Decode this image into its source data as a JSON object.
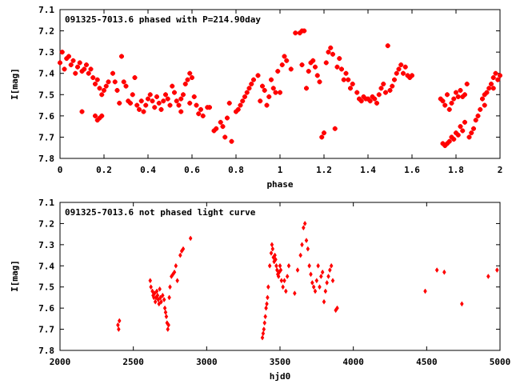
{
  "colors": {
    "points": "#ff0000",
    "axes": "#000000",
    "background": "#ffffff"
  },
  "chart_data": [
    {
      "type": "scatter",
      "title": "091325-7013.6 phased with P=214.90day",
      "xlabel": "phase",
      "ylabel": "I[mag]",
      "xlim": [
        0,
        2
      ],
      "ylim": [
        7.1,
        7.8
      ],
      "y_inverted": true,
      "grid": false,
      "xticks": [
        "0",
        "0.2",
        "0.4",
        "0.6",
        "0.8",
        "1",
        "1.2",
        "1.4",
        "1.6",
        "1.8",
        "2"
      ],
      "yticks": [
        "7.1",
        "7.2",
        "7.3",
        "7.4",
        "7.5",
        "7.6",
        "7.7",
        "7.8"
      ],
      "marker": "cross",
      "points": [
        [
          0.0,
          7.35
        ],
        [
          0.01,
          7.3
        ],
        [
          0.02,
          7.38
        ],
        [
          0.03,
          7.33
        ],
        [
          0.04,
          7.32
        ],
        [
          0.05,
          7.36
        ],
        [
          0.06,
          7.34
        ],
        [
          0.07,
          7.4
        ],
        [
          0.08,
          7.37
        ],
        [
          0.09,
          7.35
        ],
        [
          0.1,
          7.39
        ],
        [
          0.11,
          7.38
        ],
        [
          0.12,
          7.36
        ],
        [
          0.13,
          7.4
        ],
        [
          0.14,
          7.38
        ],
        [
          0.15,
          7.42
        ],
        [
          0.16,
          7.45
        ],
        [
          0.17,
          7.43
        ],
        [
          0.18,
          7.47
        ],
        [
          0.19,
          7.5
        ],
        [
          0.2,
          7.48
        ],
        [
          0.21,
          7.46
        ],
        [
          0.22,
          7.44
        ],
        [
          0.1,
          7.58
        ],
        [
          0.16,
          7.6
        ],
        [
          0.17,
          7.62
        ],
        [
          0.18,
          7.61
        ],
        [
          0.19,
          7.6
        ],
        [
          0.24,
          7.4
        ],
        [
          0.25,
          7.44
        ],
        [
          0.26,
          7.48
        ],
        [
          0.27,
          7.54
        ],
        [
          0.28,
          7.32
        ],
        [
          0.29,
          7.44
        ],
        [
          0.3,
          7.46
        ],
        [
          0.31,
          7.53
        ],
        [
          0.32,
          7.54
        ],
        [
          0.33,
          7.5
        ],
        [
          0.34,
          7.42
        ],
        [
          0.35,
          7.55
        ],
        [
          0.36,
          7.57
        ],
        [
          0.37,
          7.53
        ],
        [
          0.38,
          7.58
        ],
        [
          0.39,
          7.55
        ],
        [
          0.4,
          7.52
        ],
        [
          0.41,
          7.5
        ],
        [
          0.42,
          7.53
        ],
        [
          0.43,
          7.56
        ],
        [
          0.44,
          7.51
        ],
        [
          0.45,
          7.54
        ],
        [
          0.46,
          7.57
        ],
        [
          0.47,
          7.53
        ],
        [
          0.48,
          7.5
        ],
        [
          0.49,
          7.52
        ],
        [
          0.5,
          7.55
        ],
        [
          0.51,
          7.46
        ],
        [
          0.52,
          7.49
        ],
        [
          0.53,
          7.53
        ],
        [
          0.54,
          7.55
        ],
        [
          0.55,
          7.52
        ],
        [
          0.56,
          7.5
        ],
        [
          0.57,
          7.45
        ],
        [
          0.58,
          7.43
        ],
        [
          0.59,
          7.4
        ],
        [
          0.6,
          7.42
        ],
        [
          0.61,
          7.51
        ],
        [
          0.62,
          7.55
        ],
        [
          0.63,
          7.59
        ],
        [
          0.64,
          7.57
        ],
        [
          0.65,
          7.6
        ],
        [
          0.55,
          7.58
        ],
        [
          0.59,
          7.54
        ],
        [
          0.67,
          7.56
        ],
        [
          0.68,
          7.56
        ],
        [
          0.7,
          7.67
        ],
        [
          0.71,
          7.66
        ],
        [
          0.73,
          7.63
        ],
        [
          0.74,
          7.65
        ],
        [
          0.75,
          7.7
        ],
        [
          0.76,
          7.61
        ],
        [
          0.77,
          7.54
        ],
        [
          0.78,
          7.72
        ],
        [
          0.8,
          7.58
        ],
        [
          0.81,
          7.57
        ],
        [
          0.82,
          7.55
        ],
        [
          0.83,
          7.53
        ],
        [
          0.84,
          7.51
        ],
        [
          0.85,
          7.49
        ],
        [
          0.86,
          7.47
        ],
        [
          0.87,
          7.45
        ],
        [
          0.88,
          7.43
        ],
        [
          0.9,
          7.41
        ],
        [
          0.91,
          7.53
        ],
        [
          0.92,
          7.46
        ],
        [
          0.93,
          7.48
        ],
        [
          0.94,
          7.55
        ],
        [
          0.95,
          7.51
        ],
        [
          0.96,
          7.43
        ],
        [
          0.97,
          7.47
        ],
        [
          0.98,
          7.49
        ],
        [
          0.99,
          7.39
        ],
        [
          1.0,
          7.49
        ],
        [
          1.01,
          7.36
        ],
        [
          1.02,
          7.32
        ],
        [
          1.03,
          7.34
        ],
        [
          1.05,
          7.38
        ],
        [
          1.07,
          7.21
        ],
        [
          1.09,
          7.21
        ],
        [
          1.1,
          7.2
        ],
        [
          1.11,
          7.2
        ],
        [
          1.1,
          7.36
        ],
        [
          1.12,
          7.47
        ],
        [
          1.13,
          7.39
        ],
        [
          1.14,
          7.35
        ],
        [
          1.15,
          7.34
        ],
        [
          1.16,
          7.37
        ],
        [
          1.17,
          7.41
        ],
        [
          1.18,
          7.44
        ],
        [
          1.19,
          7.7
        ],
        [
          1.2,
          7.68
        ],
        [
          1.21,
          7.35
        ],
        [
          1.22,
          7.3
        ],
        [
          1.23,
          7.28
        ],
        [
          1.24,
          7.31
        ],
        [
          1.25,
          7.66
        ],
        [
          1.26,
          7.37
        ],
        [
          1.27,
          7.33
        ],
        [
          1.28,
          7.38
        ],
        [
          1.29,
          7.43
        ],
        [
          1.3,
          7.4
        ],
        [
          1.31,
          7.43
        ],
        [
          1.32,
          7.47
        ],
        [
          1.33,
          7.45
        ],
        [
          1.35,
          7.49
        ],
        [
          1.36,
          7.52
        ],
        [
          1.37,
          7.53
        ],
        [
          1.38,
          7.51
        ],
        [
          1.39,
          7.52
        ],
        [
          1.4,
          7.52
        ],
        [
          1.41,
          7.53
        ],
        [
          1.42,
          7.51
        ],
        [
          1.43,
          7.52
        ],
        [
          1.44,
          7.54
        ],
        [
          1.45,
          7.5
        ],
        [
          1.46,
          7.47
        ],
        [
          1.47,
          7.45
        ],
        [
          1.48,
          7.49
        ],
        [
          1.49,
          7.27
        ],
        [
          1.5,
          7.48
        ],
        [
          1.51,
          7.46
        ],
        [
          1.52,
          7.43
        ],
        [
          1.53,
          7.4
        ],
        [
          1.54,
          7.38
        ],
        [
          1.55,
          7.36
        ],
        [
          1.56,
          7.4
        ],
        [
          1.57,
          7.37
        ],
        [
          1.58,
          7.41
        ],
        [
          1.59,
          7.42
        ],
        [
          1.6,
          7.41
        ],
        [
          1.73,
          7.52
        ],
        [
          1.74,
          7.53
        ],
        [
          1.75,
          7.55
        ],
        [
          1.76,
          7.5
        ],
        [
          1.77,
          7.57
        ],
        [
          1.78,
          7.54
        ],
        [
          1.79,
          7.52
        ],
        [
          1.8,
          7.49
        ],
        [
          1.81,
          7.51
        ],
        [
          1.82,
          7.48
        ],
        [
          1.83,
          7.51
        ],
        [
          1.84,
          7.5
        ],
        [
          1.85,
          7.45
        ],
        [
          1.74,
          7.73
        ],
        [
          1.75,
          7.74
        ],
        [
          1.76,
          7.73
        ],
        [
          1.77,
          7.72
        ],
        [
          1.78,
          7.7
        ],
        [
          1.79,
          7.71
        ],
        [
          1.8,
          7.68
        ],
        [
          1.81,
          7.69
        ],
        [
          1.82,
          7.65
        ],
        [
          1.83,
          7.67
        ],
        [
          1.84,
          7.63
        ],
        [
          1.86,
          7.7
        ],
        [
          1.87,
          7.68
        ],
        [
          1.88,
          7.66
        ],
        [
          1.89,
          7.62
        ],
        [
          1.9,
          7.6
        ],
        [
          1.91,
          7.57
        ],
        [
          1.92,
          7.52
        ],
        [
          1.93,
          7.55
        ],
        [
          1.94,
          7.49
        ],
        [
          1.95,
          7.47
        ],
        [
          1.96,
          7.45
        ],
        [
          1.97,
          7.42
        ],
        [
          1.98,
          7.4
        ],
        [
          1.99,
          7.43
        ],
        [
          2.0,
          7.41
        ],
        [
          1.97,
          7.47
        ],
        [
          1.93,
          7.5
        ]
      ]
    },
    {
      "type": "scatter",
      "title": "091325-7013.6 not phased light curve",
      "xlabel": "hjd0",
      "ylabel": "I[mag]",
      "xlim": [
        2000,
        5000
      ],
      "ylim": [
        7.1,
        7.8
      ],
      "y_inverted": true,
      "grid": false,
      "xticks": [
        "2000",
        "2500",
        "3000",
        "3500",
        "4000",
        "4500",
        "5000"
      ],
      "yticks": [
        "7.1",
        "7.2",
        "7.3",
        "7.4",
        "7.5",
        "7.6",
        "7.7",
        "7.8"
      ],
      "marker": "diamond",
      "points": [
        [
          2395,
          7.68
        ],
        [
          2400,
          7.7
        ],
        [
          2405,
          7.66
        ],
        [
          2615,
          7.47
        ],
        [
          2620,
          7.5
        ],
        [
          2630,
          7.52
        ],
        [
          2635,
          7.54
        ],
        [
          2640,
          7.55
        ],
        [
          2645,
          7.53
        ],
        [
          2650,
          7.57
        ],
        [
          2655,
          7.55
        ],
        [
          2660,
          7.52
        ],
        [
          2665,
          7.54
        ],
        [
          2670,
          7.56
        ],
        [
          2675,
          7.58
        ],
        [
          2680,
          7.51
        ],
        [
          2685,
          7.55
        ],
        [
          2690,
          7.57
        ],
        [
          2700,
          7.54
        ],
        [
          2710,
          7.56
        ],
        [
          2715,
          7.6
        ],
        [
          2720,
          7.62
        ],
        [
          2725,
          7.64
        ],
        [
          2730,
          7.67
        ],
        [
          2735,
          7.7
        ],
        [
          2740,
          7.68
        ],
        [
          2745,
          7.55
        ],
        [
          2750,
          7.5
        ],
        [
          2760,
          7.45
        ],
        [
          2770,
          7.44
        ],
        [
          2780,
          7.43
        ],
        [
          2790,
          7.4
        ],
        [
          2800,
          7.47
        ],
        [
          2820,
          7.35
        ],
        [
          2830,
          7.33
        ],
        [
          2840,
          7.32
        ],
        [
          2890,
          7.27
        ],
        [
          3380,
          7.74
        ],
        [
          3385,
          7.72
        ],
        [
          3390,
          7.7
        ],
        [
          3395,
          7.67
        ],
        [
          3400,
          7.64
        ],
        [
          3405,
          7.6
        ],
        [
          3410,
          7.58
        ],
        [
          3415,
          7.55
        ],
        [
          3420,
          7.5
        ],
        [
          3430,
          7.4
        ],
        [
          3440,
          7.34
        ],
        [
          3445,
          7.3
        ],
        [
          3450,
          7.32
        ],
        [
          3455,
          7.36
        ],
        [
          3460,
          7.38
        ],
        [
          3465,
          7.35
        ],
        [
          3470,
          7.37
        ],
        [
          3475,
          7.4
        ],
        [
          3480,
          7.42
        ],
        [
          3485,
          7.44
        ],
        [
          3490,
          7.45
        ],
        [
          3495,
          7.43
        ],
        [
          3500,
          7.4
        ],
        [
          3505,
          7.42
        ],
        [
          3510,
          7.47
        ],
        [
          3520,
          7.5
        ],
        [
          3530,
          7.47
        ],
        [
          3540,
          7.52
        ],
        [
          3550,
          7.45
        ],
        [
          3560,
          7.4
        ],
        [
          3600,
          7.53
        ],
        [
          3620,
          7.42
        ],
        [
          3640,
          7.35
        ],
        [
          3650,
          7.3
        ],
        [
          3660,
          7.22
        ],
        [
          3670,
          7.2
        ],
        [
          3680,
          7.28
        ],
        [
          3690,
          7.32
        ],
        [
          3700,
          7.4
        ],
        [
          3710,
          7.44
        ],
        [
          3720,
          7.48
        ],
        [
          3730,
          7.5
        ],
        [
          3740,
          7.52
        ],
        [
          3750,
          7.47
        ],
        [
          3760,
          7.4
        ],
        [
          3770,
          7.5
        ],
        [
          3780,
          7.45
        ],
        [
          3790,
          7.43
        ],
        [
          3800,
          7.57
        ],
        [
          3810,
          7.52
        ],
        [
          3820,
          7.48
        ],
        [
          3830,
          7.45
        ],
        [
          3840,
          7.42
        ],
        [
          3850,
          7.4
        ],
        [
          3860,
          7.47
        ],
        [
          3880,
          7.61
        ],
        [
          3890,
          7.6
        ],
        [
          4490,
          7.52
        ],
        [
          4570,
          7.42
        ],
        [
          4620,
          7.43
        ],
        [
          4740,
          7.58
        ],
        [
          4920,
          7.45
        ],
        [
          4980,
          7.42
        ]
      ]
    }
  ]
}
